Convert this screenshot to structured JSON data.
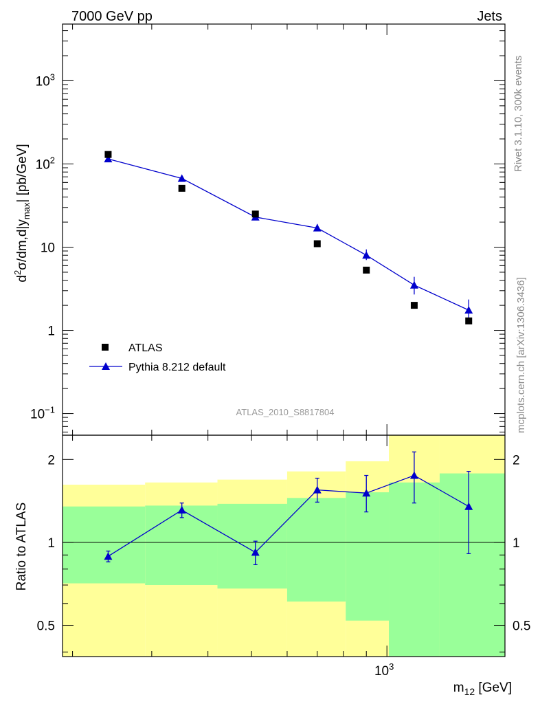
{
  "header": {
    "left": "7000 GeV pp",
    "right": "Jets"
  },
  "side_labels": {
    "rivet": "Rivet 3.1.10,  300k events",
    "mcplots": "mcplots.cern.ch [arXiv:1306.3436]"
  },
  "watermark": "ATLAS_2010_S8817804",
  "legend": {
    "data_label": "ATLAS",
    "mc_label": "Pythia 8.212 default"
  },
  "axis_labels": {
    "y_top": {
      "base": "d",
      "sup": "2",
      "rest": "σ/dm,d|y",
      "sub": "max",
      "tail": "| [pb/GeV]"
    },
    "y_bottom": "Ratio to ATLAS",
    "x": {
      "base": "m",
      "sub": "12",
      "tail": " [GeV]"
    }
  },
  "ticks": {
    "top_y": [
      {
        "v": 0.1,
        "base": "10",
        "exp": "−1"
      },
      {
        "v": 1,
        "base": "1",
        "exp": ""
      },
      {
        "v": 10,
        "base": "10",
        "exp": ""
      },
      {
        "v": 100,
        "base": "10",
        "exp": "2"
      },
      {
        "v": 1000,
        "base": "10",
        "exp": "3"
      }
    ],
    "ratio_y": [
      {
        "v": 0.5,
        "label": "0.5"
      },
      {
        "v": 1,
        "label": "1"
      },
      {
        "v": 2,
        "label": "2"
      }
    ],
    "x": [
      {
        "v": 1000,
        "base": "10",
        "exp": "3"
      }
    ]
  },
  "colors": {
    "mc": "#0000cc",
    "data": "#000000",
    "band_green": "#99ff99",
    "band_yellow": "#ffff99"
  },
  "chart_data": {
    "type": "scatter",
    "title": "7000 GeV pp — Jets",
    "xlabel": "m12 [GeV]",
    "ylabel": "d2σ/dm,d|ymax| [pb/GeV]",
    "xscale": "log",
    "yscale": "log",
    "xlim": [
      190,
      1830
    ],
    "ylim": [
      0.055,
      4800
    ],
    "bins": [
      {
        "lo": 190,
        "hi": 290,
        "center": 240
      },
      {
        "lo": 290,
        "hi": 420,
        "center": 350
      },
      {
        "lo": 420,
        "hi": 600,
        "center": 510
      },
      {
        "lo": 600,
        "hi": 810,
        "center": 700
      },
      {
        "lo": 810,
        "hi": 1010,
        "center": 900
      },
      {
        "lo": 1010,
        "hi": 1310,
        "center": 1150
      },
      {
        "lo": 1310,
        "hi": 1830,
        "center": 1520
      }
    ],
    "series": [
      {
        "name": "ATLAS",
        "x": [
          240,
          350,
          510,
          700,
          900,
          1150,
          1520
        ],
        "values": [
          130,
          51,
          25,
          11,
          5.3,
          2.0,
          1.3
        ]
      },
      {
        "name": "Pythia 8.212 default",
        "x": [
          240,
          350,
          510,
          700,
          900,
          1150,
          1520
        ],
        "values": [
          115,
          67,
          23,
          17,
          8,
          3.5,
          1.75
        ],
        "err_lo": [
          4,
          3,
          1.5,
          1.5,
          1.0,
          0.8,
          0.5
        ],
        "err_hi": [
          4,
          3,
          1.5,
          2.0,
          1.4,
          0.9,
          0.6
        ]
      }
    ],
    "ratio": {
      "ylabel": "Ratio to ATLAS",
      "ylim": [
        0.385,
        2.45
      ],
      "mc_values": [
        0.89,
        1.31,
        0.92,
        1.55,
        1.51,
        1.75,
        1.35
      ],
      "mc_err_lo": [
        0.04,
        0.08,
        0.09,
        0.15,
        0.22,
        0.36,
        0.44
      ],
      "mc_err_hi": [
        0.04,
        0.08,
        0.09,
        0.16,
        0.24,
        0.38,
        0.46
      ],
      "band_inner": [
        [
          0.71,
          1.35
        ],
        [
          0.7,
          1.36
        ],
        [
          0.68,
          1.38
        ],
        [
          0.61,
          1.45
        ],
        [
          0.52,
          1.52
        ],
        [
          0.36,
          1.65
        ],
        [
          0.36,
          1.78
        ]
      ],
      "band_outer": [
        [
          0.385,
          1.62
        ],
        [
          0.385,
          1.65
        ],
        [
          0.385,
          1.69
        ],
        [
          0.385,
          1.81
        ],
        [
          0.385,
          1.97
        ],
        [
          0.36,
          2.45
        ],
        [
          0.36,
          2.45
        ]
      ]
    }
  }
}
